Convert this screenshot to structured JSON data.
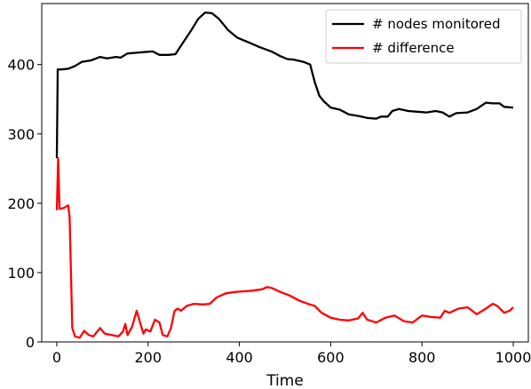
{
  "chart_data": {
    "type": "line",
    "title": "",
    "xlabel": "Time",
    "ylabel": "",
    "xlim": [
      -33,
      1033
    ],
    "ylim": [
      0,
      488
    ],
    "xticks": [
      0,
      200,
      400,
      600,
      800,
      1000
    ],
    "yticks": [
      0,
      100,
      200,
      300,
      400
    ],
    "grid": false,
    "legend_position": "top-right",
    "series": [
      {
        "name": "# nodes monitored",
        "color": "#000000",
        "points": [
          [
            0,
            265
          ],
          [
            2,
            393
          ],
          [
            10,
            393
          ],
          [
            25,
            394
          ],
          [
            40,
            398
          ],
          [
            55,
            404
          ],
          [
            75,
            406
          ],
          [
            95,
            411
          ],
          [
            110,
            409
          ],
          [
            130,
            411
          ],
          [
            140,
            410
          ],
          [
            155,
            416
          ],
          [
            175,
            417
          ],
          [
            190,
            418
          ],
          [
            210,
            419
          ],
          [
            225,
            414
          ],
          [
            245,
            414
          ],
          [
            260,
            415
          ],
          [
            275,
            430
          ],
          [
            295,
            450
          ],
          [
            310,
            466
          ],
          [
            325,
            475
          ],
          [
            340,
            474
          ],
          [
            355,
            466
          ],
          [
            375,
            450
          ],
          [
            395,
            439
          ],
          [
            420,
            432
          ],
          [
            445,
            425
          ],
          [
            470,
            419
          ],
          [
            490,
            412
          ],
          [
            505,
            408
          ],
          [
            520,
            407
          ],
          [
            540,
            404
          ],
          [
            555,
            400
          ],
          [
            565,
            375
          ],
          [
            575,
            355
          ],
          [
            585,
            347
          ],
          [
            600,
            338
          ],
          [
            620,
            335
          ],
          [
            640,
            328
          ],
          [
            660,
            326
          ],
          [
            680,
            323
          ],
          [
            700,
            322
          ],
          [
            710,
            325
          ],
          [
            725,
            325
          ],
          [
            735,
            333
          ],
          [
            750,
            336
          ],
          [
            770,
            333
          ],
          [
            790,
            332
          ],
          [
            810,
            331
          ],
          [
            830,
            333
          ],
          [
            845,
            331
          ],
          [
            860,
            325
          ],
          [
            875,
            330
          ],
          [
            900,
            331
          ],
          [
            920,
            336
          ],
          [
            940,
            345
          ],
          [
            955,
            344
          ],
          [
            970,
            344
          ],
          [
            980,
            339
          ],
          [
            1000,
            338
          ]
        ]
      },
      {
        "name": "# difference",
        "color": "#ff0000",
        "points": [
          [
            0,
            190
          ],
          [
            3,
            265
          ],
          [
            6,
            192
          ],
          [
            15,
            193
          ],
          [
            25,
            197
          ],
          [
            28,
            180
          ],
          [
            31,
            100
          ],
          [
            34,
            20
          ],
          [
            40,
            8
          ],
          [
            50,
            6
          ],
          [
            60,
            16
          ],
          [
            70,
            10
          ],
          [
            80,
            8
          ],
          [
            90,
            16
          ],
          [
            95,
            20
          ],
          [
            105,
            12
          ],
          [
            120,
            10
          ],
          [
            135,
            8
          ],
          [
            145,
            15
          ],
          [
            150,
            26
          ],
          [
            155,
            10
          ],
          [
            165,
            22
          ],
          [
            175,
            45
          ],
          [
            185,
            22
          ],
          [
            190,
            12
          ],
          [
            195,
            18
          ],
          [
            205,
            15
          ],
          [
            215,
            32
          ],
          [
            225,
            28
          ],
          [
            232,
            10
          ],
          [
            242,
            8
          ],
          [
            250,
            20
          ],
          [
            258,
            45
          ],
          [
            265,
            48
          ],
          [
            272,
            45
          ],
          [
            285,
            52
          ],
          [
            300,
            55
          ],
          [
            320,
            54
          ],
          [
            335,
            55
          ],
          [
            350,
            64
          ],
          [
            370,
            70
          ],
          [
            390,
            72
          ],
          [
            410,
            73
          ],
          [
            430,
            74
          ],
          [
            450,
            76
          ],
          [
            460,
            79
          ],
          [
            470,
            78
          ],
          [
            490,
            72
          ],
          [
            510,
            67
          ],
          [
            530,
            60
          ],
          [
            550,
            55
          ],
          [
            565,
            52
          ],
          [
            580,
            42
          ],
          [
            600,
            35
          ],
          [
            620,
            32
          ],
          [
            640,
            31
          ],
          [
            660,
            34
          ],
          [
            670,
            42
          ],
          [
            680,
            32
          ],
          [
            700,
            28
          ],
          [
            720,
            35
          ],
          [
            740,
            38
          ],
          [
            760,
            30
          ],
          [
            780,
            28
          ],
          [
            800,
            38
          ],
          [
            820,
            36
          ],
          [
            840,
            35
          ],
          [
            850,
            45
          ],
          [
            860,
            42
          ],
          [
            880,
            48
          ],
          [
            900,
            50
          ],
          [
            920,
            40
          ],
          [
            940,
            48
          ],
          [
            955,
            55
          ],
          [
            965,
            52
          ],
          [
            980,
            42
          ],
          [
            992,
            45
          ],
          [
            1000,
            50
          ]
        ]
      }
    ]
  }
}
